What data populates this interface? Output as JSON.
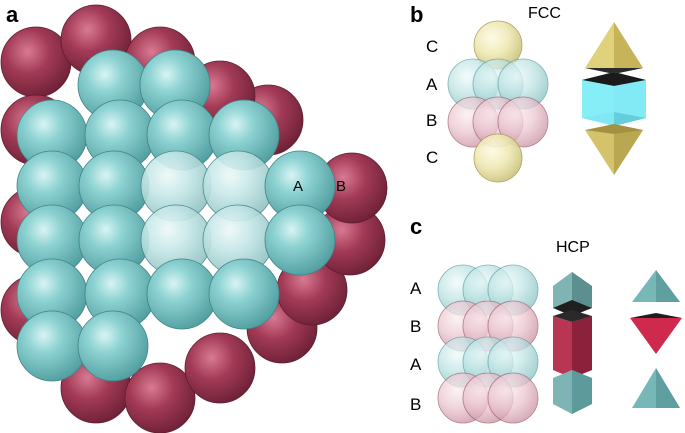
{
  "panels": {
    "a": {
      "label": "a",
      "sphere_labels": [
        "A",
        "B"
      ]
    },
    "b": {
      "label": "b",
      "title": "FCC",
      "layers": [
        "C",
        "A",
        "B",
        "C"
      ]
    },
    "c": {
      "label": "c",
      "title": "HCP",
      "layers": [
        "A",
        "B",
        "A",
        "B"
      ]
    }
  },
  "colors": {
    "layer_A": "#73c4c4",
    "layer_B": "#a0324f",
    "layer_C": "#e2dc96",
    "octahedron_face": "#7fe8f2",
    "tetrahedron_yellow": "#d9c870",
    "tetrahedron_teal": "#6ab7b7",
    "tetrahedron_red": "#c8284b"
  }
}
